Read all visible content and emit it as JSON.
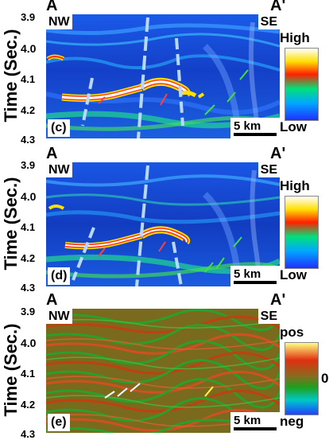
{
  "figure": {
    "section_start": "A",
    "section_end": "A'",
    "left_dir": "NW",
    "right_dir": "SE",
    "y_axis_label": "Time (Sec.)",
    "y_ticks": [
      "3.9",
      "4.0",
      "4.1",
      "4.2",
      "4.3"
    ],
    "scale_bar": "5 km"
  },
  "panels": [
    {
      "label": "(c)",
      "colorbar_top": "High",
      "colorbar_bottom": "Low"
    },
    {
      "label": "(d)",
      "colorbar_top": "High",
      "colorbar_bottom": "Low"
    },
    {
      "label": "(e)",
      "colorbar_top": "pos",
      "colorbar_mid": "0",
      "colorbar_bottom": "neg"
    }
  ],
  "colors": {
    "background_blue": "#1848d8",
    "amplitude_ramp": [
      "#2030ff",
      "#00a8ff",
      "#00e07a",
      "#ffe000",
      "#ff2000",
      "#ffffff"
    ],
    "seismic_ramp": [
      "#2040ff",
      "#00c8c8",
      "#1ea01e",
      "#8a6a1e",
      "#e03010",
      "#ffff80"
    ],
    "fault_line": "#b8d8ff",
    "arrow_red": "#ff4040",
    "arrow_green": "#40e040",
    "arrow_white": "#ffffff",
    "arrow_yellow": "#ffff40"
  }
}
